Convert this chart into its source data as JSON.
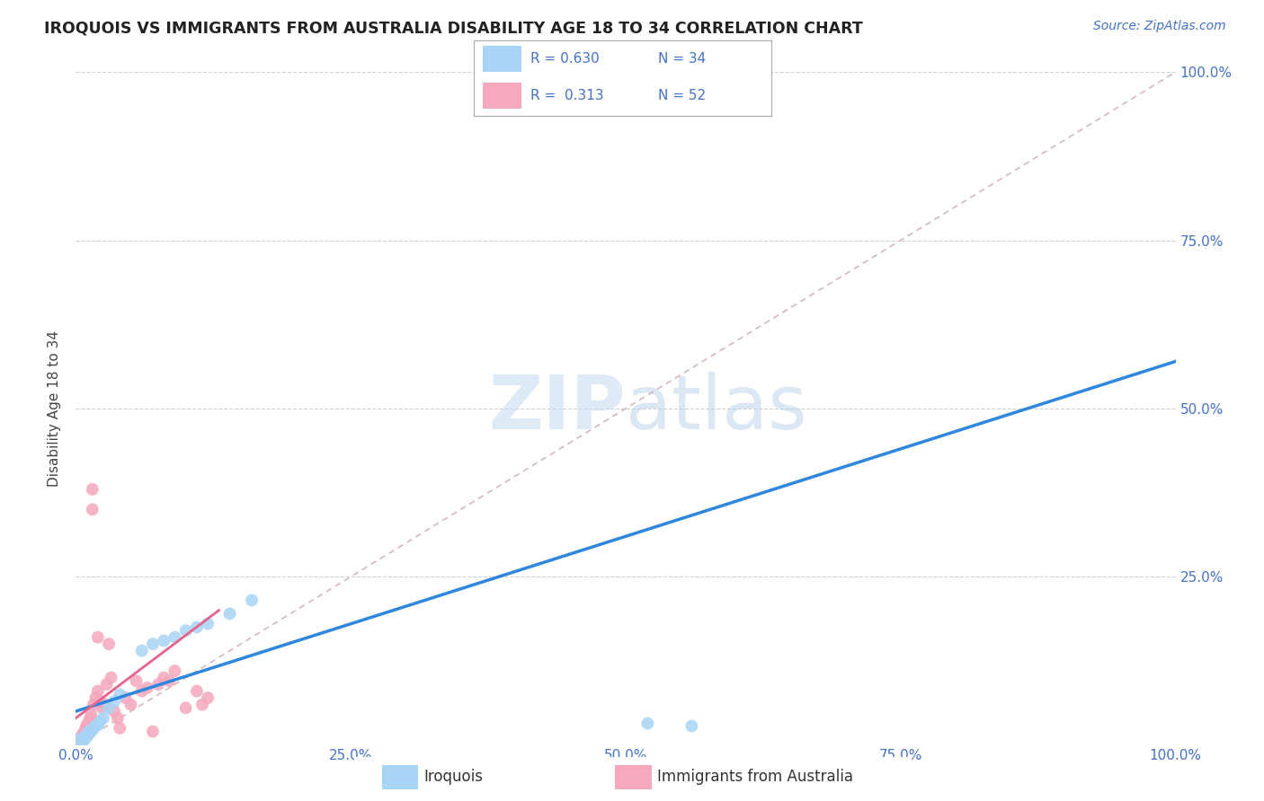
{
  "title": "IROQUOIS VS IMMIGRANTS FROM AUSTRALIA DISABILITY AGE 18 TO 34 CORRELATION CHART",
  "source_text": "Source: ZipAtlas.com",
  "ylabel": "Disability Age 18 to 34",
  "xlim": [
    0,
    1
  ],
  "ylim": [
    0,
    1
  ],
  "xtick_vals": [
    0,
    0.25,
    0.5,
    0.75,
    1.0
  ],
  "xtick_labels": [
    "0.0%",
    "25.0%",
    "50.0%",
    "75.0%",
    "100.0%"
  ],
  "right_ytick_vals": [
    0.25,
    0.5,
    0.75,
    1.0
  ],
  "right_ytick_labels": [
    "25.0%",
    "50.0%",
    "75.0%",
    "100.0%"
  ],
  "iroquois_color": "#A8D4F5",
  "immigrants_color": "#F5A8BE",
  "trend_blue": "#2E86DE",
  "trend_pink": "#E8638C",
  "diag_color": "#D0B0B8",
  "legend_r1": "R = 0.630",
  "legend_n1": "N = 34",
  "legend_r2": "R =  0.313",
  "legend_n2": "N = 52",
  "blue_trend_x0": 0.0,
  "blue_trend_y0": 0.05,
  "blue_trend_x1": 1.0,
  "blue_trend_y1": 0.57,
  "pink_trend_x0": 0.0,
  "pink_trend_y0": 0.04,
  "pink_trend_x1": 0.13,
  "pink_trend_y1": 0.2,
  "iroquois_x": [
    0.002,
    0.003,
    0.004,
    0.005,
    0.005,
    0.006,
    0.007,
    0.008,
    0.008,
    0.009,
    0.01,
    0.01,
    0.012,
    0.013,
    0.015,
    0.016,
    0.018,
    0.02,
    0.022,
    0.025,
    0.03,
    0.035,
    0.04,
    0.06,
    0.07,
    0.08,
    0.09,
    0.1,
    0.11,
    0.12,
    0.14,
    0.16,
    0.52,
    0.56
  ],
  "iroquois_y": [
    0.005,
    0.005,
    0.005,
    0.01,
    0.007,
    0.006,
    0.01,
    0.008,
    0.01,
    0.012,
    0.015,
    0.012,
    0.02,
    0.018,
    0.022,
    0.025,
    0.028,
    0.03,
    0.035,
    0.04,
    0.055,
    0.065,
    0.075,
    0.14,
    0.15,
    0.155,
    0.16,
    0.17,
    0.175,
    0.18,
    0.195,
    0.215,
    0.032,
    0.028
  ],
  "immigrants_x": [
    0.001,
    0.002,
    0.002,
    0.003,
    0.003,
    0.004,
    0.004,
    0.005,
    0.005,
    0.006,
    0.006,
    0.007,
    0.007,
    0.008,
    0.008,
    0.009,
    0.009,
    0.01,
    0.01,
    0.011,
    0.012,
    0.013,
    0.014,
    0.015,
    0.016,
    0.018,
    0.02,
    0.022,
    0.024,
    0.026,
    0.028,
    0.03,
    0.032,
    0.035,
    0.038,
    0.04,
    0.045,
    0.05,
    0.055,
    0.06,
    0.065,
    0.07,
    0.075,
    0.08,
    0.085,
    0.09,
    0.1,
    0.11,
    0.115,
    0.12,
    0.015,
    0.02
  ],
  "immigrants_y": [
    0.003,
    0.005,
    0.004,
    0.007,
    0.006,
    0.01,
    0.008,
    0.012,
    0.009,
    0.015,
    0.011,
    0.018,
    0.013,
    0.02,
    0.016,
    0.025,
    0.019,
    0.03,
    0.022,
    0.028,
    0.035,
    0.04,
    0.045,
    0.38,
    0.06,
    0.07,
    0.08,
    0.065,
    0.055,
    0.06,
    0.09,
    0.15,
    0.1,
    0.05,
    0.04,
    0.025,
    0.07,
    0.06,
    0.095,
    0.08,
    0.085,
    0.02,
    0.09,
    0.1,
    0.095,
    0.11,
    0.055,
    0.08,
    0.06,
    0.07,
    0.35,
    0.16
  ]
}
